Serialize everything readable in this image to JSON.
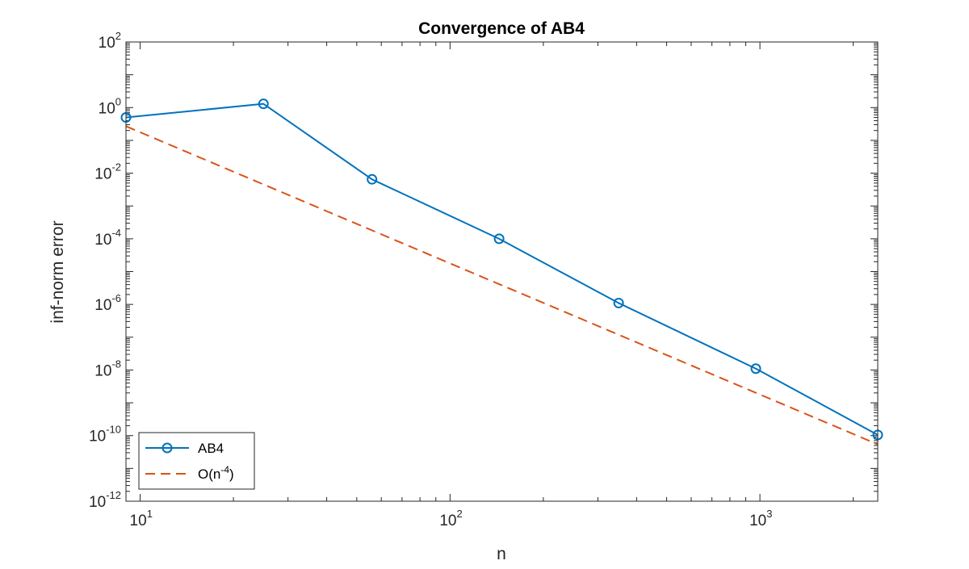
{
  "chart_data": {
    "type": "line",
    "title": "Convergence of AB4",
    "xlabel": "n",
    "ylabel": "inf-norm error",
    "xscale": "log",
    "yscale": "log",
    "xlim": [
      9,
      2400
    ],
    "ylim": [
      1e-12,
      100
    ],
    "xticks": [
      {
        "value": 10,
        "base": "10",
        "exp": "1"
      },
      {
        "value": 100,
        "base": "10",
        "exp": "2"
      },
      {
        "value": 1000,
        "base": "10",
        "exp": "3"
      }
    ],
    "yticks": [
      {
        "value": 1e-12,
        "base": "10",
        "exp": "-12"
      },
      {
        "value": 1e-10,
        "base": "10",
        "exp": "-10"
      },
      {
        "value": 1e-08,
        "base": "10",
        "exp": "-8"
      },
      {
        "value": 1e-06,
        "base": "10",
        "exp": "-6"
      },
      {
        "value": 0.0001,
        "base": "10",
        "exp": "-4"
      },
      {
        "value": 0.01,
        "base": "10",
        "exp": "-2"
      },
      {
        "value": 1,
        "base": "10",
        "exp": "0"
      },
      {
        "value": 100,
        "base": "10",
        "exp": "2"
      }
    ],
    "grid": false,
    "legend_position": "bottom-left",
    "series": [
      {
        "name": "AB4",
        "style": "solid",
        "marker": "circle",
        "color": "#0072BD",
        "x": [
          9,
          25,
          56,
          144,
          350,
          970,
          2400
        ],
        "y": [
          0.5,
          1.3,
          0.0065,
          0.0001,
          1.1e-06,
          1.1e-08,
          1.05e-10
        ]
      },
      {
        "name": "O(n-4)",
        "legend_main": "O(n",
        "legend_sup": "-4",
        "legend_tail": ")",
        "style": "dashed",
        "marker": "none",
        "color": "#D95319",
        "x": [
          9,
          2400
        ],
        "y": [
          0.27,
          5.4e-11
        ]
      }
    ]
  }
}
